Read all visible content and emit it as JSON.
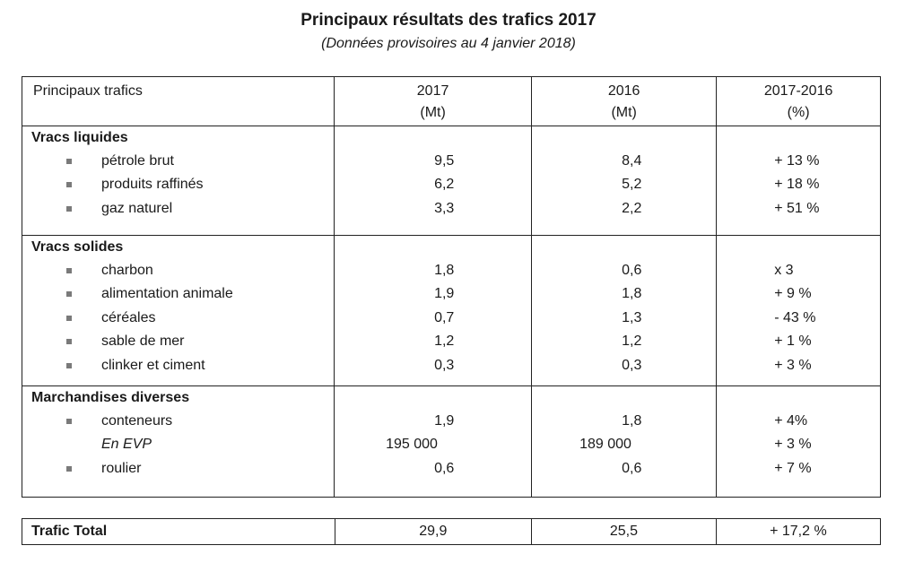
{
  "title": "Principaux résultats des trafics 2017",
  "subtitle": "(Données provisoires au 4 janvier 2018)",
  "header": {
    "col1": "Principaux trafics",
    "col2_line1": "2017",
    "col2_line2": "(Mt)",
    "col3_line1": "2016",
    "col3_line2": "(Mt)",
    "col4_line1": "2017-2016",
    "col4_line2": "(%)"
  },
  "sections": [
    {
      "name": "Vracs liquides",
      "items": [
        {
          "label": "pétrole brut",
          "v2017": "9,5",
          "v2016": "8,4",
          "change": "+ 13 %"
        },
        {
          "label": "produits raffinés",
          "v2017": "6,2",
          "v2016": "5,2",
          "change": "+ 18 %"
        },
        {
          "label": "gaz naturel",
          "v2017": "3,3",
          "v2016": "2,2",
          "change": "+ 51 %"
        }
      ]
    },
    {
      "name": "Vracs solides",
      "items": [
        {
          "label": "charbon",
          "v2017": "1,8",
          "v2016": "0,6",
          "change": "x 3"
        },
        {
          "label": "alimentation animale",
          "v2017": "1,9",
          "v2016": "1,8",
          "change": "+ 9 %"
        },
        {
          "label": "céréales",
          "v2017": "0,7",
          "v2016": "1,3",
          "change": "- 43 %"
        },
        {
          "label": "sable de mer",
          "v2017": "1,2",
          "v2016": "1,2",
          "change": "+ 1 %"
        },
        {
          "label": "clinker et ciment",
          "v2017": "0,3",
          "v2016": "0,3",
          "change": "+ 3 %"
        }
      ]
    },
    {
      "name": "Marchandises diverses",
      "items": [
        {
          "label": "conteneurs",
          "v2017": "1,9",
          "v2016": "1,8",
          "change": "+ 4%"
        },
        {
          "label": "En EVP",
          "v2017": "195 000",
          "v2016": "189 000",
          "change": "+ 3 %"
        },
        {
          "label": "roulier",
          "v2017": "0,6",
          "v2016": "0,6",
          "change": "+ 7 %"
        }
      ]
    }
  ],
  "total": {
    "label": "Trafic Total",
    "v2017": "29,9",
    "v2016": "25,5",
    "change": "+ 17,2 %"
  }
}
